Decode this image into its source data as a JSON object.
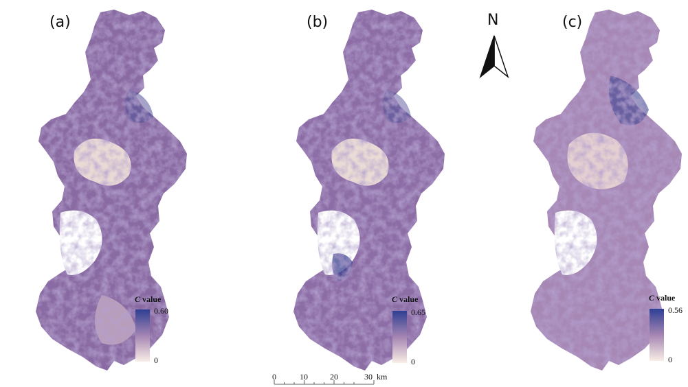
{
  "panels": [
    {
      "label": "(a)",
      "legend": {
        "title_var": "C",
        "title_word": "value",
        "max": "0.60",
        "min": "0"
      }
    },
    {
      "label": "(b)",
      "legend": {
        "title_var": "C",
        "title_word": "value",
        "max": "0.65",
        "min": "0"
      }
    },
    {
      "label": "(c)",
      "legend": {
        "title_var": "C",
        "title_word": "value",
        "max": "0.56",
        "min": "0"
      }
    }
  ],
  "north_arrow": {
    "letter": "N"
  },
  "scale_bar": {
    "ticks": [
      "0",
      "10",
      "20",
      "30"
    ],
    "unit": "km"
  },
  "colors": {
    "high": "#2e3f93",
    "mid": "#9b7db0",
    "low": "#f5e6da",
    "water": "#ffffff"
  }
}
